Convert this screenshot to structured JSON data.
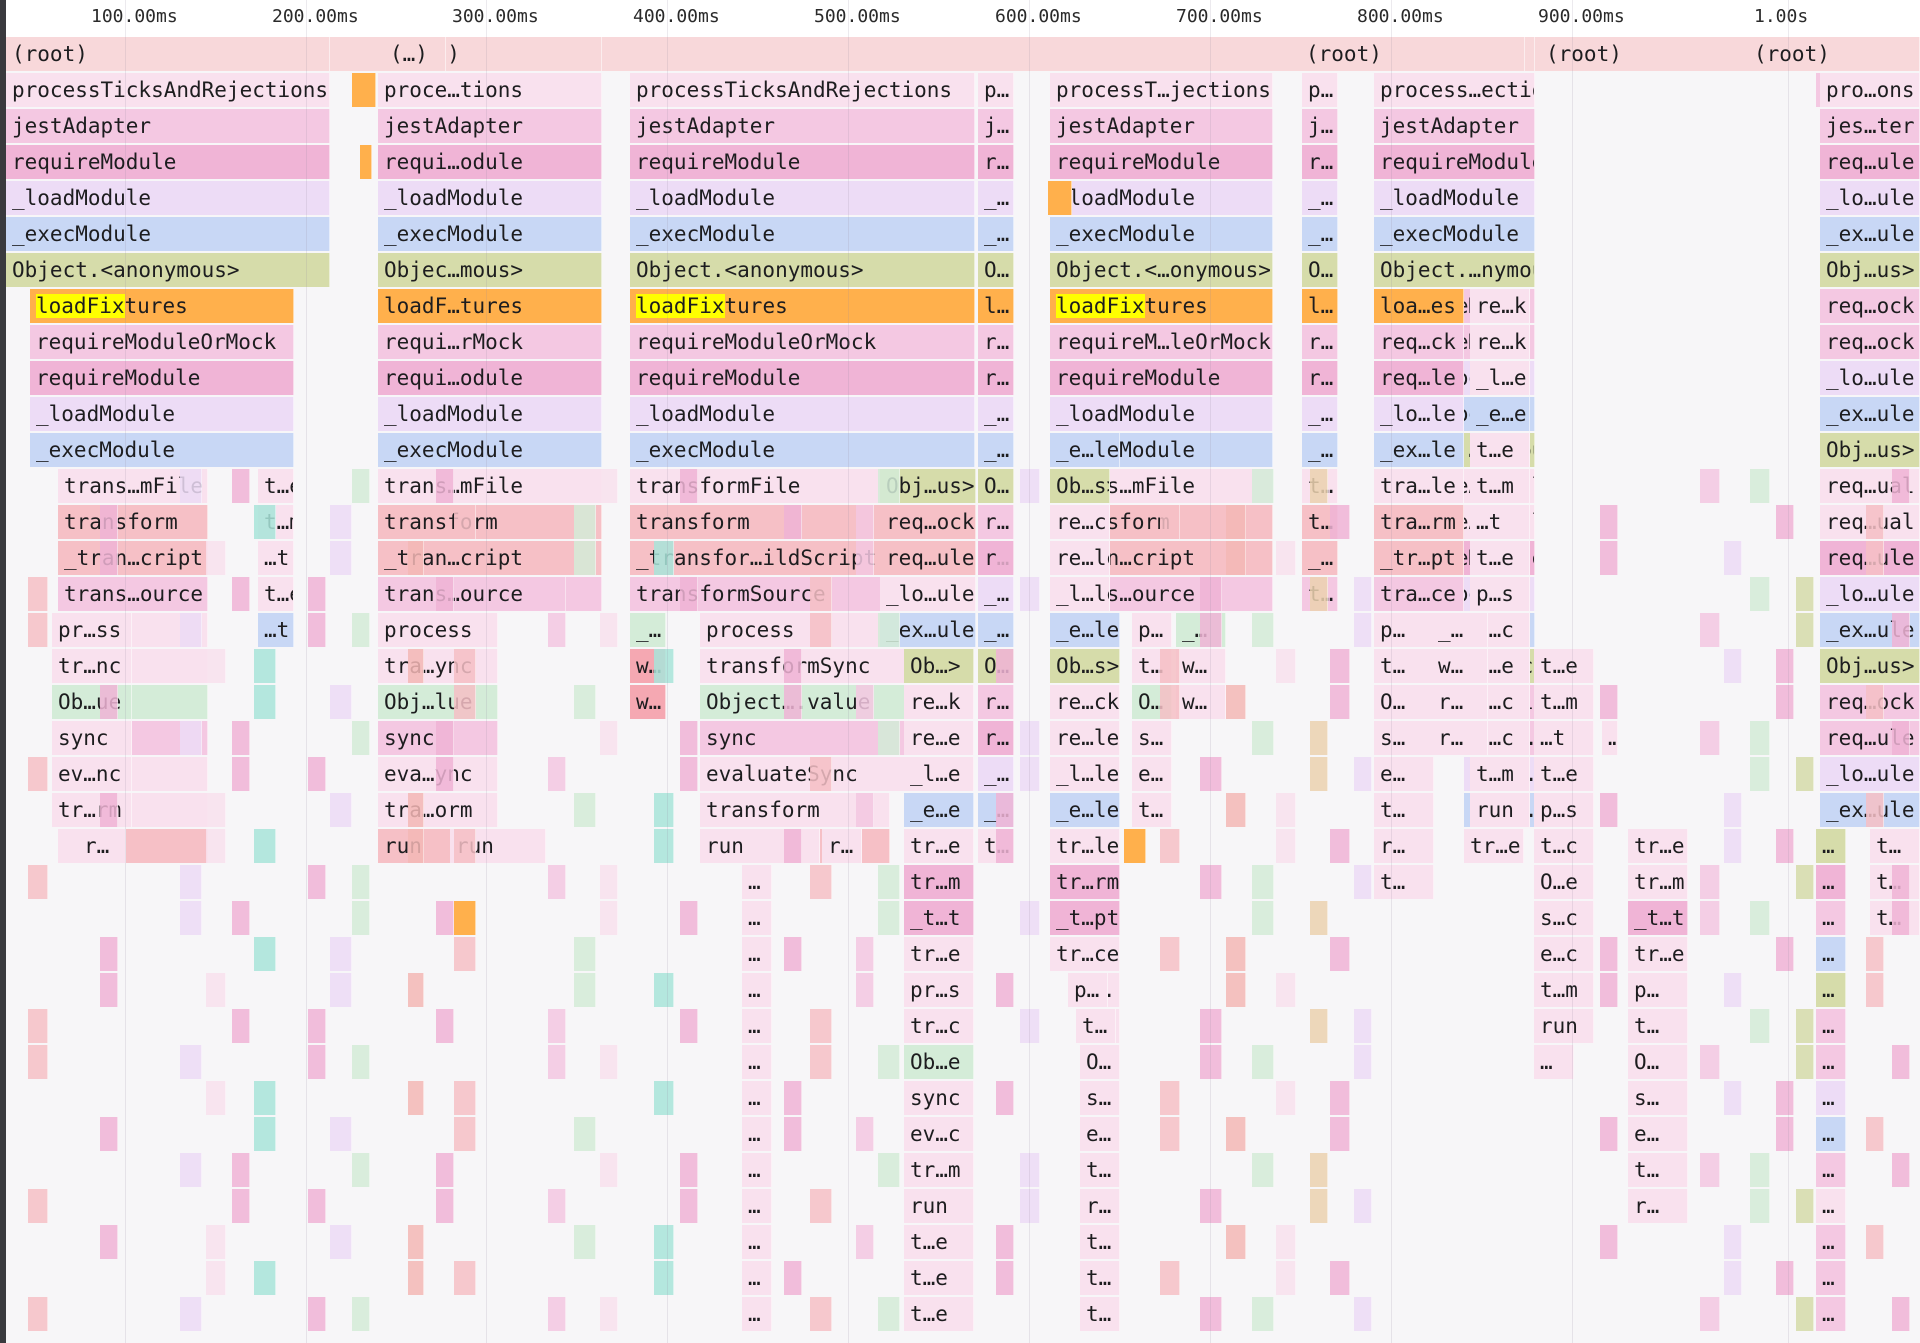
{
  "ruler": {
    "ticks": [
      "100.00ms",
      "200.00ms",
      "300.00ms",
      "400.00ms",
      "500.00ms",
      "600.00ms",
      "700.00ms",
      "800.00ms",
      "900.00ms",
      "1.00s"
    ]
  },
  "search": {
    "query": "loadFix"
  },
  "palette": {
    "root": "#f8d8da",
    "rootLight": "#fbe9ea",
    "pinkLight": "#f9e1ee",
    "pink": "#f4c8e2",
    "pinkMid": "#f0b4d6",
    "pinkStrong": "#f2a9d4",
    "lavender": "#eddcf6",
    "lavenderMid": "#e3c6f3",
    "blue": "#c8d7f5",
    "blueMid": "#b8cdf3",
    "olive": "#d6dcaa",
    "oliveMid": "#cdd79a",
    "orange": "#ffb04c",
    "rose": "#f6c0c6",
    "roseMid": "#f5a8b2",
    "salmon": "#f4b8b6",
    "mint": "#d4ecd8",
    "teal": "#a9e5da",
    "tan": "#ecd2b0"
  },
  "columns": [
    {
      "x0": 6,
      "x1": 330,
      "labels": [
        "(root)",
        "processTicksAndRejections",
        "jestAdapter",
        "requireModule",
        "_loadModule",
        "_execModule",
        "Object.<anonymous>",
        "loadFixtures",
        "requireModuleOrMock",
        "requireModule",
        "_loadModule",
        "_execModule",
        "trans…mFile",
        "transform",
        "_tran…cript",
        "trans…ource",
        "pr…ss",
        "tr…nc",
        "Ob…ue",
        "sync",
        "ev…nc",
        "tr…rm",
        "r…"
      ]
    },
    {
      "x0": 378,
      "x1": 602,
      "labels": [
        "(root)",
        "proce…tions",
        "jestAdapter",
        "requi…odule",
        "_loadModule",
        "_execModule",
        "Objec…mous>",
        "loadF…tures",
        "requi…rMock",
        "requi…odule",
        "_loadModule",
        "_execModule",
        "trans…mFile",
        "transform",
        "_tran…cript",
        "trans…ource",
        "process",
        "tra…ync",
        "Obj…lue",
        "sync",
        "eva…ync",
        "tra…orm",
        "run"
      ]
    },
    {
      "x0": 630,
      "x1": 975,
      "labels": [
        "",
        "processTicksAndRejections",
        "jestAdapter",
        "requireModule",
        "_loadModule",
        "_execModule",
        "Object.<anonymous>",
        "loadFixtures",
        "requireModuleOrMock",
        "requireModule",
        "_loadModule",
        "_execModule",
        "transformFile",
        "transform",
        "_transfor…ildScript",
        "transformSource",
        "process",
        "transformSync",
        "Object….value",
        "sync",
        "evaluateSync",
        "transform",
        "run"
      ]
    },
    {
      "x0": 1050,
      "x1": 1273,
      "labels": [
        "",
        "processT…jections",
        "jestAdapter",
        "requireModule",
        "_loadModule",
        "_execModule",
        "Object.<…onymous>",
        "loadFixtures",
        "requireM…leOrMock",
        "requireModule",
        "_loadModule",
        "_execModule",
        "trans…mFile",
        "transform",
        "_tran…cript",
        "trans…ource",
        "p…",
        "t…",
        "O…",
        "s…",
        "e…",
        "t…"
      ]
    },
    {
      "x0": 1374,
      "x1": 1535,
      "labels": [
        "(root)",
        "process…ections",
        "jestAdapter",
        "requireModule",
        "_loadModule",
        "_execModule",
        "Object.…nymous>",
        "requireMock",
        "requireMock",
        "_loadModule",
        "_execModule",
        "Object.…nymous>",
        "requireActual",
        "requireActual",
        "requireModule",
        "_loadModule",
        "_execModule",
        "Objec…ous>",
        "requi…Mock",
        "requ…ule",
        "_loa…ule",
        "_exe…ule",
        "tr…e"
      ]
    }
  ],
  "rowLabels": {
    "roots": [
      "(root)",
      "(…)",
      "(root)",
      "(root)",
      "(root)",
      "(root)"
    ],
    "misc": [
      "t…e",
      "t…m",
      "…t",
      "t…e",
      "…t",
      "Obj…us>",
      "req…ock",
      "req…ule",
      "_lo…ule",
      "_ex…ule",
      "r…",
      "j…",
      "p…",
      "_…",
      "O…",
      "l…",
      "r…",
      "t…",
      "s…",
      "e…",
      "run",
      "t…e",
      "loa…es",
      "re…k",
      "req…ck",
      "req…le",
      "_lo…le",
      "_ex…le",
      "tra…le",
      "tra…rm",
      "_tr…pt",
      "tra…ce",
      "w…",
      "_…",
      "_l…e",
      "_e…e",
      "t…m",
      "t…c",
      "O…e",
      "s…c",
      "e…c",
      "pro…ons",
      "jes…ter",
      "Obj…us>",
      "req…ual",
      "…",
      "Ob…s>",
      "re…ck",
      "re…le",
      "_l…le",
      "_e…le",
      "tr…le",
      "tr…rm",
      "_t…pt",
      "tr…ce",
      "Ob…>",
      "re…k",
      "re…e",
      "_l…e",
      "_e…e",
      "tr…e",
      "tr…m",
      "_t…t",
      "pr…s",
      "tr…c",
      "Ob…e",
      "ev…c",
      "(…"
    ]
  }
}
